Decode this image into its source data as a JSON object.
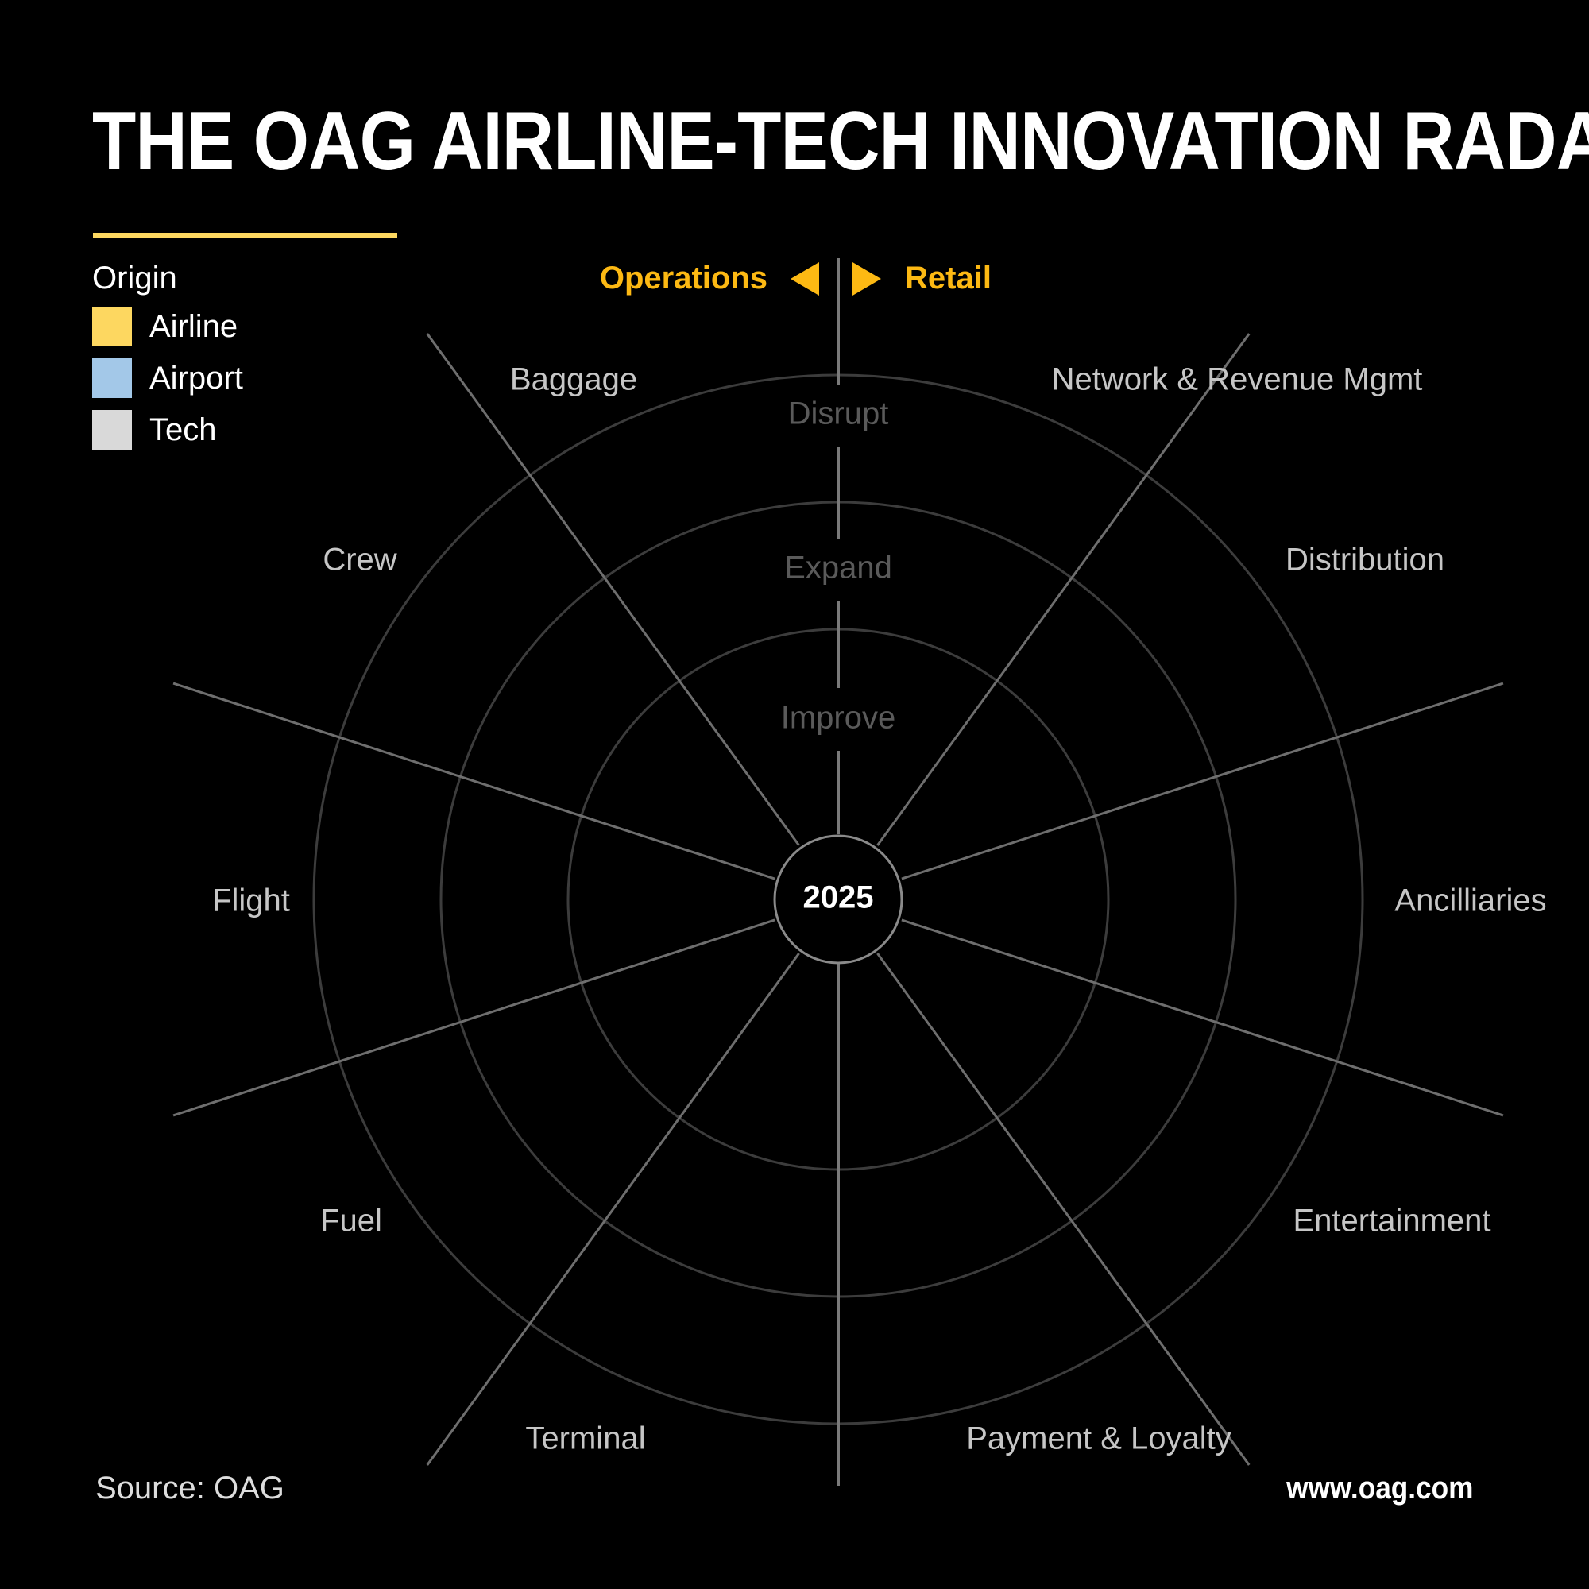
{
  "title": "THE OAG AIRLINE-TECH INNOVATION RADAR",
  "legend": {
    "title": "Origin",
    "items": [
      {
        "label": "Airline",
        "color": "#fdd760"
      },
      {
        "label": "Airport",
        "color": "#a3c8e8"
      },
      {
        "label": "Tech",
        "color": "#d9d9d9"
      }
    ]
  },
  "direction": {
    "left_label": "Operations",
    "right_label": "Retail",
    "accent_color": "#fdb913"
  },
  "rings": [
    "Improve",
    "Expand",
    "Disrupt"
  ],
  "center_label": "2025",
  "segments": [
    "Network & Revenue Mgmt",
    "Distribution",
    "Ancilliaries",
    "Entertainment",
    "Payment & Loyalty",
    "Terminal",
    "Fuel",
    "Flight",
    "Crew",
    "Baggage"
  ],
  "footer": {
    "source": "Source: OAG",
    "url": "www.oag.com"
  }
}
